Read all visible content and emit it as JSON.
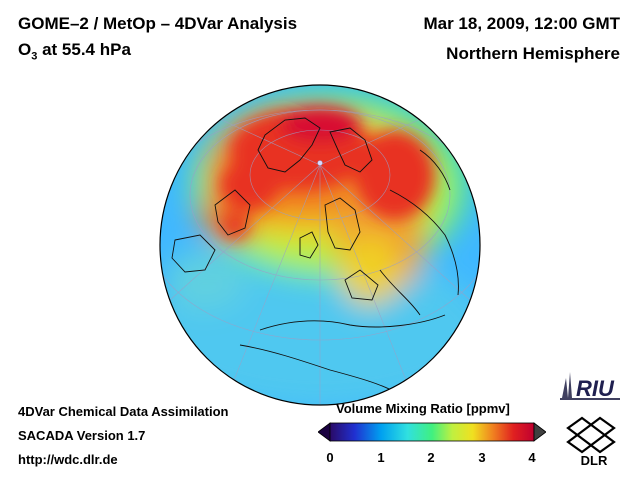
{
  "header": {
    "title_main": "GOME–2 / MetOp – 4DVar Analysis",
    "species_prefix": "O",
    "species_subscript": "3",
    "species_suffix": " at 55.4 hPa",
    "datetime": "Mar 18, 2009, 12:00 GMT",
    "region": "Northern Hemisphere"
  },
  "footer": {
    "line1": "4DVar Chemical Data Assimilation",
    "line2": "SACADA Version 1.7",
    "line3": "http://wdc.dlr.de"
  },
  "colorbar": {
    "title": "Volume Mixing Ratio [ppmv]",
    "ticks": [
      "0",
      "1",
      "2",
      "3",
      "4"
    ],
    "colors": [
      "#2a0a66",
      "#2030d0",
      "#00a0f0",
      "#30e0e0",
      "#40f080",
      "#c0f040",
      "#f0e020",
      "#f08020",
      "#e02020",
      "#c00030"
    ]
  },
  "logos": {
    "riu": "RIU",
    "dlr": "DLR"
  },
  "map": {
    "projection": "orthographic, north pole view",
    "colors": {
      "ocean_low": "#4ab0ff",
      "mid": "#40e0a0",
      "high": "#f03020",
      "peak": "#e00020"
    }
  }
}
